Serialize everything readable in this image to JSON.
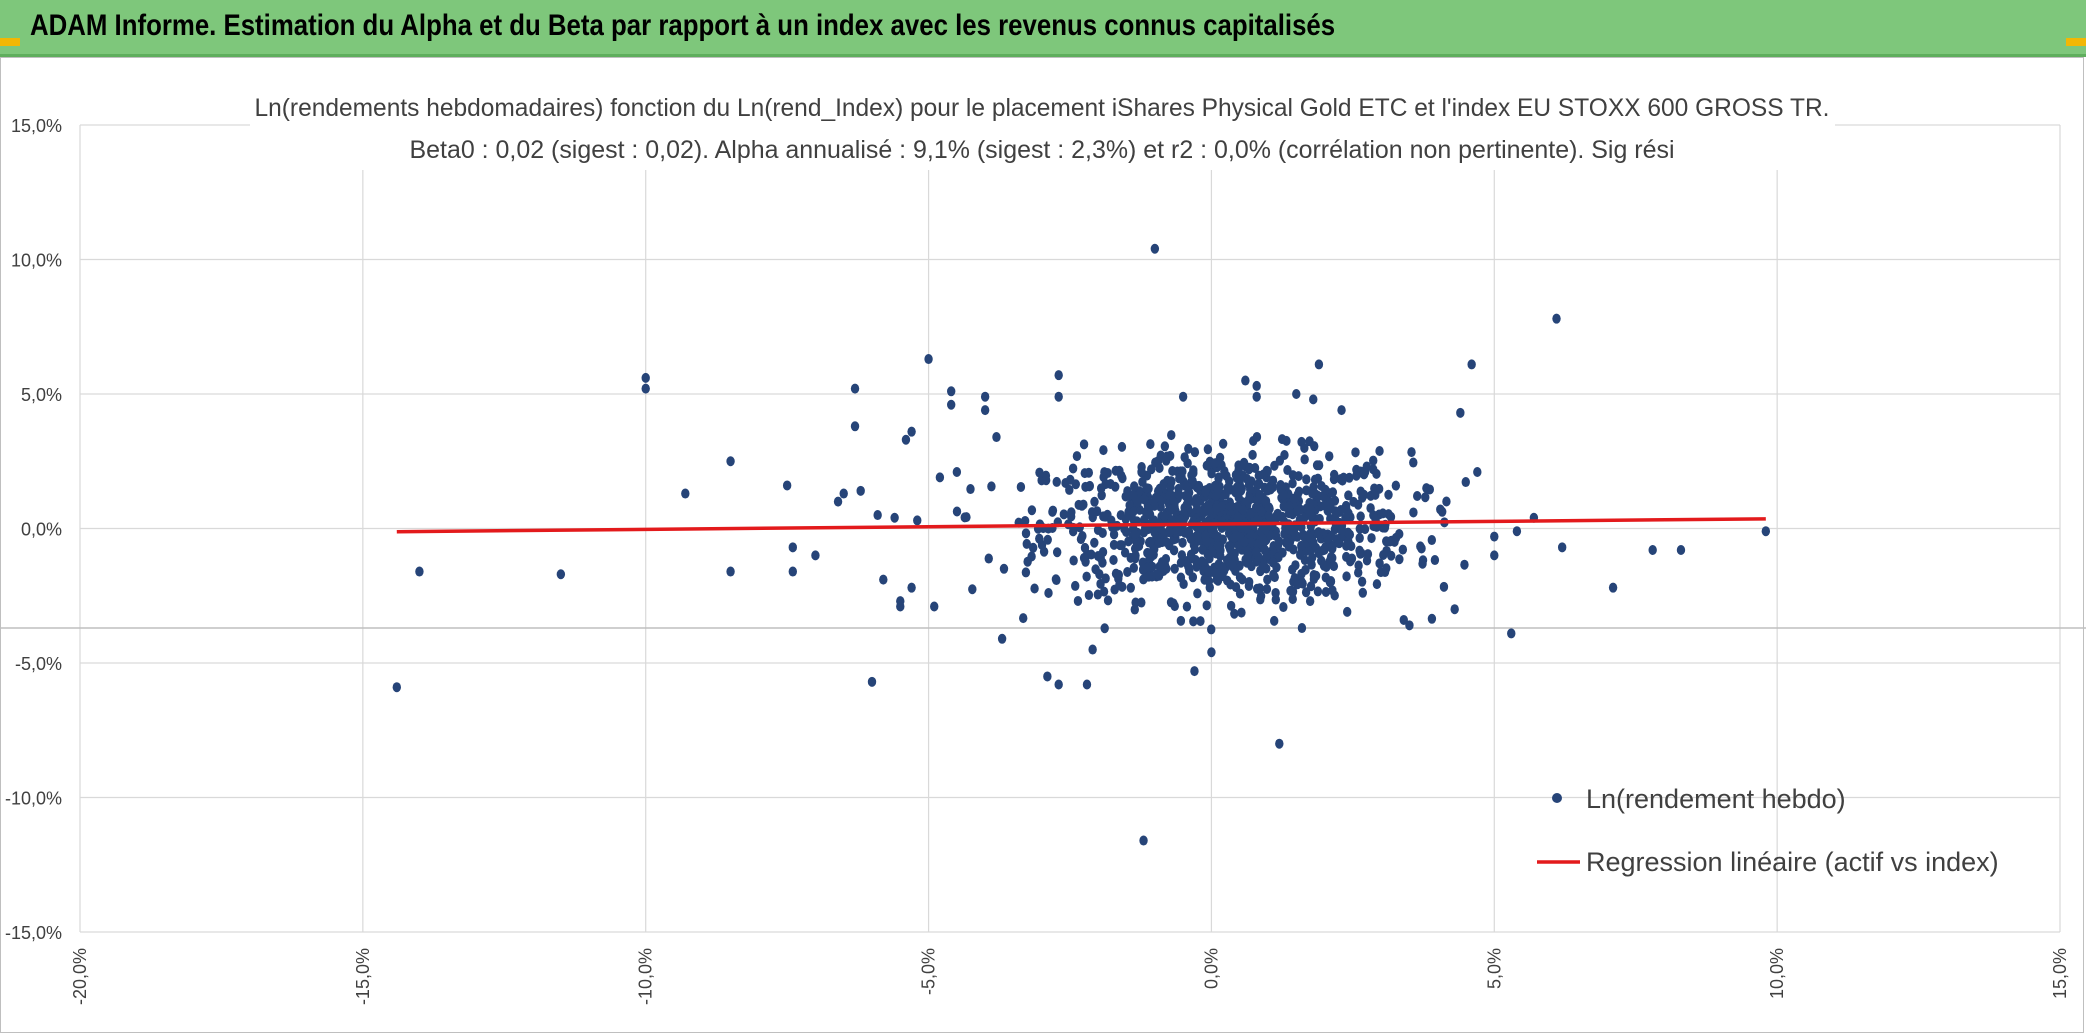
{
  "header": {
    "title": "ADAM Informe. Estimation du Alpha et du Beta par rapport à un index avec les revenus connus capitalisés"
  },
  "colors": {
    "header_bg": "#7ec77b",
    "points": "#264478",
    "regression": "#e31a1c",
    "grid": "#d9d9d9"
  },
  "chart_data": {
    "type": "scatter",
    "title_lines": [
      "Ln(rendements hebdomadaires) fonction du Ln(rend_Index) pour le placement iShares Physical Gold ETC et l'index EU STOXX 600 GROSS TR.",
      "Beta0 : 0,02 (sigest : 0,02). Alpha annualisé : 9,1% (sigest : 2,3%) et r2 : 0,0% (corrélation non pertinente). Sig rési"
    ],
    "xlim": [
      -20,
      15
    ],
    "ylim": [
      -15,
      15
    ],
    "x_ticks": [
      "-20,0%",
      "-15,0%",
      "-10,0%",
      "-5,0%",
      "0,0%",
      "5,0%",
      "10,0%",
      "15,0%"
    ],
    "y_ticks": [
      "15,0%",
      "10,0%",
      "5,0%",
      "0,0%",
      "-5,0%",
      "-10,0%",
      "-15,0%"
    ],
    "grid": true,
    "legend_position": "bottom-right",
    "series": [
      {
        "name": "Ln(rendement hebdo)",
        "kind": "scatter",
        "points": [
          [
            -1.0,
            10.4
          ],
          [
            -11.5,
            -1.7
          ],
          [
            -14.4,
            -5.9
          ],
          [
            -14.0,
            -1.6
          ],
          [
            -10.0,
            5.6
          ],
          [
            -10.0,
            5.2
          ],
          [
            -9.3,
            1.3
          ],
          [
            -8.5,
            2.5
          ],
          [
            -8.5,
            -1.6
          ],
          [
            -7.5,
            1.6
          ],
          [
            -7.4,
            -0.7
          ],
          [
            -7.4,
            -1.6
          ],
          [
            -7.0,
            -1.0
          ],
          [
            -6.6,
            1.0
          ],
          [
            -6.5,
            1.3
          ],
          [
            -6.3,
            5.2
          ],
          [
            -6.3,
            3.8
          ],
          [
            -6.2,
            1.4
          ],
          [
            -6.0,
            -5.7
          ],
          [
            -5.9,
            0.5
          ],
          [
            -5.8,
            -1.9
          ],
          [
            -5.6,
            0.4
          ],
          [
            -5.5,
            -2.7
          ],
          [
            -5.5,
            -2.9
          ],
          [
            -5.4,
            3.3
          ],
          [
            -5.3,
            3.6
          ],
          [
            -5.3,
            -2.2
          ],
          [
            -5.2,
            0.3
          ],
          [
            -5.0,
            6.3
          ],
          [
            -4.9,
            -2.9
          ],
          [
            -4.8,
            1.9
          ],
          [
            -4.6,
            4.6
          ],
          [
            -4.6,
            5.1
          ],
          [
            -4.5,
            2.1
          ],
          [
            -4.0,
            4.9
          ],
          [
            -4.0,
            4.4
          ],
          [
            -3.8,
            3.4
          ],
          [
            -3.7,
            -4.1
          ],
          [
            -2.7,
            5.7
          ],
          [
            -2.7,
            4.9
          ],
          [
            -2.9,
            -5.5
          ],
          [
            -2.7,
            -5.8
          ],
          [
            -2.2,
            -5.8
          ],
          [
            -2.1,
            -4.5
          ],
          [
            -1.2,
            -11.6
          ],
          [
            -0.5,
            4.9
          ],
          [
            0.6,
            5.5
          ],
          [
            0.8,
            5.3
          ],
          [
            0.8,
            4.9
          ],
          [
            1.5,
            5.0
          ],
          [
            1.9,
            6.1
          ],
          [
            2.3,
            4.4
          ],
          [
            1.8,
            4.8
          ],
          [
            -0.3,
            -5.3
          ],
          [
            0.0,
            -4.6
          ],
          [
            1.2,
            -8.0
          ],
          [
            4.4,
            4.3
          ],
          [
            4.6,
            6.1
          ],
          [
            6.1,
            7.8
          ],
          [
            6.2,
            -0.7
          ],
          [
            5.7,
            0.4
          ],
          [
            5.3,
            -3.9
          ],
          [
            5.4,
            -0.1
          ],
          [
            7.1,
            -2.2
          ],
          [
            7.8,
            -0.8
          ],
          [
            8.3,
            -0.8
          ],
          [
            9.8,
            -0.1
          ],
          [
            4.3,
            -3.0
          ],
          [
            3.5,
            -3.6
          ],
          [
            3.4,
            -3.4
          ],
          [
            2.4,
            -3.1
          ],
          [
            1.6,
            -3.7
          ],
          [
            5.0,
            -0.3
          ],
          [
            5.0,
            -1.0
          ],
          [
            4.7,
            2.1
          ],
          [
            3.8,
            1.5
          ]
        ],
        "cluster_note_hidden": ""
      },
      {
        "name": "Regression linéaire (actif vs index)",
        "kind": "line",
        "points": [
          [
            -14.4,
            -0.12
          ],
          [
            9.8,
            0.36
          ]
        ]
      }
    ]
  }
}
